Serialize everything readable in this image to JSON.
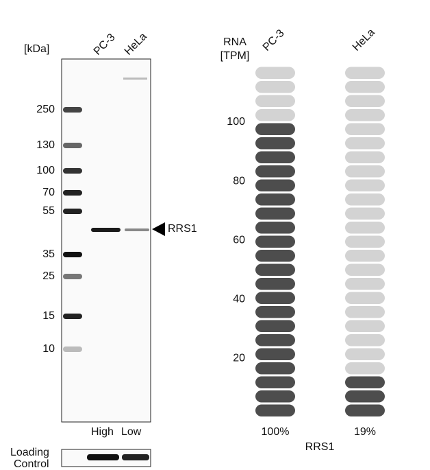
{
  "western_blot": {
    "unit": "[kDa]",
    "lanes": [
      "PC-3",
      "HeLa"
    ],
    "markers": [
      250,
      130,
      100,
      70,
      55,
      35,
      25,
      15,
      10
    ],
    "band_label": "RRS1",
    "intensity": [
      "High",
      "Low"
    ],
    "loading_control": [
      "Loading",
      "Control"
    ]
  },
  "chart_data": {
    "type": "pill-column",
    "y_label": [
      "RNA",
      "[TPM]"
    ],
    "categories": [
      "PC-3",
      "HeLa"
    ],
    "values": [
      100,
      19
    ],
    "value_labels": [
      "100%",
      "19%"
    ],
    "gene": "RRS1",
    "yticks": [
      20,
      40,
      60,
      80,
      100
    ],
    "ylim": [
      0,
      119.05
    ],
    "color": "#4d4d4d",
    "empty_color": "#d3d3d3"
  }
}
